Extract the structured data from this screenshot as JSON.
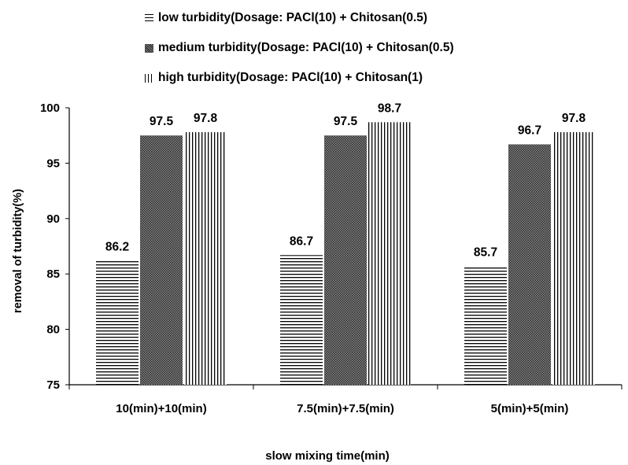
{
  "chart_data": {
    "type": "bar",
    "categories": [
      "10(min)+10(min)",
      "7.5(min)+7.5(min)",
      "5(min)+5(min)"
    ],
    "series": [
      {
        "name": "low turbidity(Dosage: PACl(10) + Chitosan(0.5)",
        "pattern": "horizontal-lines",
        "values": [
          86.2,
          86.7,
          85.7
        ]
      },
      {
        "name": "medium turbidity(Dosage: PACl(10) + Chitosan(0.5)",
        "pattern": "dense-hatch",
        "values": [
          97.5,
          97.5,
          96.7
        ]
      },
      {
        "name": "high turbidity(Dosage: PACl(10) + Chitosan(1)",
        "pattern": "vertical-lines",
        "values": [
          97.8,
          98.7,
          97.8
        ]
      }
    ],
    "data_labels": [
      [
        "86.2",
        "86.7",
        "85.7"
      ],
      [
        "97.5",
        "97.5",
        "96.7"
      ],
      [
        "97.8",
        "98.7",
        "97.8"
      ]
    ],
    "xlabel": "slow mixing time(min)",
    "ylabel": "removal of turbidity(%)",
    "ylim": [
      75,
      100
    ],
    "yticks": [
      75,
      80,
      85,
      90,
      95,
      100
    ],
    "ytick_labels": [
      "75",
      "80",
      "85",
      "90",
      "95",
      "100"
    ],
    "grid": false,
    "legend_position": "top"
  }
}
